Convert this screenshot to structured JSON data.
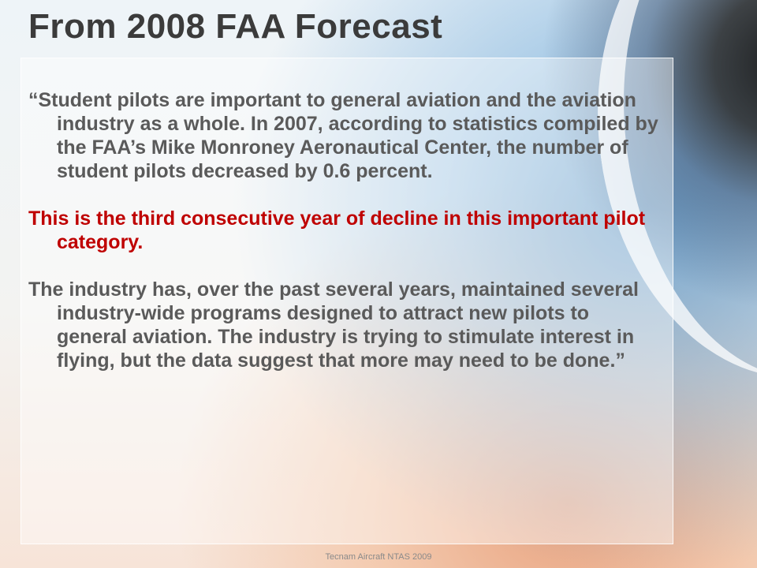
{
  "slide": {
    "title": "From 2008 FAA Forecast",
    "paragraphs": [
      "“Student pilots are important to general aviation and the aviation industry as a whole. In 2007, according to statistics compiled by the FAA’s Mike Monroney Aeronautical Center, the number of student pilots decreased by 0.6 percent.",
      "This is the third consecutive year of decline in this important pilot category.",
      "The industry has, over the past several years, maintained several industry-wide programs designed to attract new pilots to general aviation. The industry is trying to stimulate interest in flying, but the data suggest that more may need to be done.”"
    ],
    "footer": "Tecnam Aircraft NTAS 2009"
  },
  "colors": {
    "title": "#3b3b3b",
    "body": "#5a5a5a",
    "highlight": "#bf0000"
  }
}
